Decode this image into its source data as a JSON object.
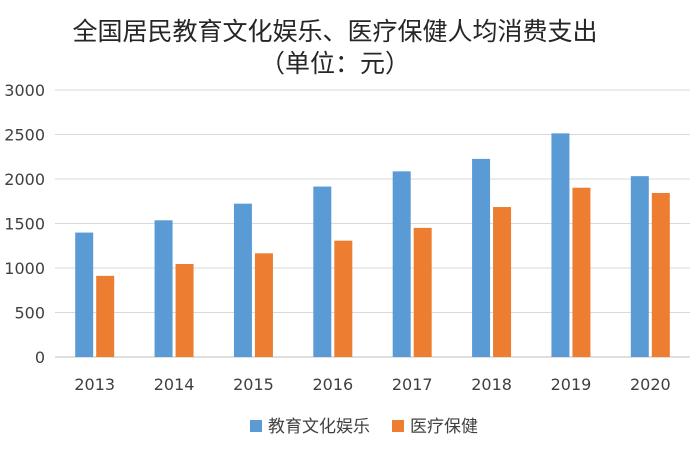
{
  "chart_data": {
    "type": "bar",
    "title_lines": [
      "全国居民教育文化娱乐、医疗保健人均消费支出",
      "（单位：元）"
    ],
    "categories": [
      "2013",
      "2014",
      "2015",
      "2016",
      "2017",
      "2018",
      "2019",
      "2020"
    ],
    "series": [
      {
        "name": "教育文化娱乐",
        "color": "#5B9BD5",
        "values": [
          1398,
          1536,
          1723,
          1915,
          2086,
          2226,
          2513,
          2032
        ]
      },
      {
        "name": "医疗保健",
        "color": "#ED7D31",
        "values": [
          912,
          1045,
          1165,
          1307,
          1451,
          1685,
          1902,
          1843
        ]
      }
    ],
    "y_ticks": [
      "0",
      "500",
      "1000",
      "1500",
      "2000",
      "2500",
      "3000"
    ],
    "ylim": [
      0,
      3000
    ],
    "grid": true,
    "legend_position": "bottom"
  }
}
